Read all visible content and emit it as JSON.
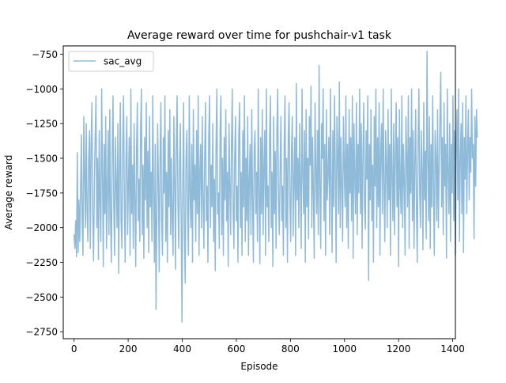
{
  "chart_data": {
    "type": "line",
    "title": "Average reward over time for pushchair-v1 task",
    "xlabel": "Episode",
    "ylabel": "Average reward",
    "xlim": [
      -40,
      1410
    ],
    "ylim": [
      -2800,
      -690
    ],
    "xticks": [
      0,
      200,
      400,
      600,
      800,
      1000,
      1200,
      1400
    ],
    "xtick_labels": [
      "0",
      "200",
      "400",
      "600",
      "800",
      "1000",
      "1200",
      "1400"
    ],
    "yticks": [
      -2750,
      -2500,
      -2250,
      -2000,
      -1750,
      -1500,
      -1250,
      -1000,
      -750
    ],
    "ytick_labels": [
      "−2750",
      "−2500",
      "−2250",
      "−2000",
      "−1750",
      "−1500",
      "−1250",
      "−1000",
      "−750"
    ],
    "grid": false,
    "legend_position": "top-left",
    "series": [
      {
        "name": "sac_avg",
        "color": "#8fbbd9",
        "x_start": 0,
        "x_step": 3,
        "values": [
          -2050,
          -2150,
          -1950,
          -2210,
          -1460,
          -2180,
          -1800,
          -2100,
          -1750,
          -1330,
          -1960,
          -2200,
          -1200,
          -1600,
          -2000,
          -1250,
          -1870,
          -2100,
          -1500,
          -1300,
          -2150,
          -1400,
          -1100,
          -1900,
          -2240,
          -1700,
          -1350,
          -1050,
          -2000,
          -1500,
          -2230,
          -1300,
          -1800,
          -2100,
          -1000,
          -1600,
          -2280,
          -1400,
          -1900,
          -1200,
          -2150,
          -1750,
          -1300,
          -2050,
          -1150,
          -1950,
          -2250,
          -1450,
          -1050,
          -1850,
          -2200,
          -1350,
          -1700,
          -2000,
          -1250,
          -2330,
          -1600,
          -1100,
          -1950,
          -2150,
          -1400,
          -1050,
          -1800,
          -2250,
          -1500,
          -1200,
          -2050,
          -1700,
          -1350,
          -2200,
          -1000,
          -1900,
          -1550,
          -2150,
          -1250,
          -1800,
          -2280,
          -1450,
          -1100,
          -1950,
          -1650,
          -2100,
          -1300,
          -1000,
          -2050,
          -1550,
          -2220,
          -1350,
          -1800,
          -1100,
          -2000,
          -1450,
          -2180,
          -1200,
          -1850,
          -1600,
          -2100,
          -1050,
          -1750,
          -2250,
          -1400,
          -2590,
          -1900,
          -1250,
          -1700,
          -2320,
          -1500,
          -1100,
          -1950,
          -2200,
          -1350,
          -1750,
          -1050,
          -2100,
          -1600,
          -2250,
          -1300,
          -1850,
          -1150,
          -2050,
          -1500,
          -1950,
          -2200,
          -1200,
          -1650,
          -2300,
          -1400,
          -1050,
          -1800,
          -2150,
          -1550,
          -1250,
          -1950,
          -2680,
          -1700,
          -1100,
          -2050,
          -2400,
          -1500,
          -1300,
          -1900,
          -2200,
          -1050,
          -1750,
          -2000,
          -1400,
          -2250,
          -1150,
          -1800,
          -1550,
          -2100,
          -1300,
          -1900,
          -1050,
          -2200,
          -1600,
          -1400,
          -2000,
          -1200,
          -1800,
          -2150,
          -1500,
          -1100,
          -1950,
          -1700,
          -2250,
          -1350,
          -1050,
          -2000,
          -1550,
          -1850,
          -1250,
          -2100,
          -1650,
          -2310,
          -1400,
          -1000,
          -1900,
          -1750,
          -2150,
          -1300,
          -1050,
          -2050,
          -1500,
          -2200,
          -1350,
          -1800,
          -1150,
          -1950,
          -1600,
          -2280,
          -1250,
          -1700,
          -2050,
          -1400,
          -1000,
          -1850,
          -2150,
          -1500,
          -1200,
          -1950,
          -1700,
          -2250,
          -1350,
          -1100,
          -2000,
          -1600,
          -2200,
          -1300,
          -1850,
          -1050,
          -2100,
          -1500,
          -1950,
          -1200,
          -2200,
          -1650,
          -1400,
          -2050,
          -1150,
          -1800,
          -2250,
          -1450,
          -1300,
          -1900,
          -1600,
          -2100,
          -1000,
          -1750,
          -2260,
          -1350,
          -1900,
          -1150,
          -2050,
          -1550,
          -1300,
          -2200,
          -1000,
          -1850,
          -1700,
          -2100,
          -1350,
          -1050,
          -2000,
          -1600,
          -2280,
          -1200,
          -1900,
          -1450,
          -2150,
          -1300,
          -1000,
          -1800,
          -2050,
          -1550,
          -1200,
          -1950,
          -1700,
          -2200,
          -1400,
          -1050,
          -2000,
          -1500,
          -2250,
          -1350,
          -1100,
          -1800,
          -2100,
          -1450,
          -1200,
          -2060,
          -1650,
          -1350,
          -2200,
          -960,
          -1800,
          -1500,
          -2000,
          -1250,
          -1700,
          -2150,
          -1000,
          -1600,
          -1900,
          -1300,
          -2250,
          -1150,
          -1850,
          -1500,
          -2080,
          -1200,
          -1550,
          -980,
          -2000,
          -1350,
          -1750,
          -2220,
          -1100,
          -1600,
          -1900,
          -1300,
          -2050,
          -830,
          -1700,
          -2150,
          -1250,
          -1500,
          -1000,
          -1950,
          -1400,
          -2200,
          -1150,
          -1800,
          -1600,
          -1350,
          -2050,
          -1000,
          -1700,
          -2180,
          -1300,
          -1850,
          -1050,
          -1600,
          -2250,
          -1200,
          -1450,
          -1900,
          -950,
          -2000,
          -1350,
          -1700,
          -2100,
          -1200,
          -1550,
          -1850,
          -1050,
          -2000,
          -1400,
          -2150,
          -1150,
          -1750,
          -1350,
          -1950,
          -1050,
          -2220,
          -1250,
          -1650,
          -1900,
          -1100,
          -2050,
          -1400,
          -1750,
          -1000,
          -1900,
          -1250,
          -2150,
          -1500,
          -1100,
          -1850,
          -2010,
          -1300,
          -1650,
          -1050,
          -2380,
          -1400,
          -1800,
          -1150,
          -1950,
          -1550,
          -2250,
          -1200,
          -1700,
          -1000,
          -2000,
          -1350,
          -1850,
          -1100,
          -2200,
          -1450,
          -1250,
          -1900,
          -1000,
          -1700,
          -2100,
          -1300,
          -1550,
          -2000,
          -1150,
          -1800,
          -1400,
          -2200,
          -1000,
          -1650,
          -1950,
          -1250,
          -2050,
          -1500,
          -1100,
          -1850,
          -1350,
          -2280,
          -1150,
          -1700,
          -1900,
          -1050,
          -2000,
          -1400,
          -1650,
          -2200,
          -1200,
          -1500,
          -1850,
          -1050,
          -2150,
          -1350,
          -1750,
          -1000,
          -1950,
          -1300,
          -2150,
          -1550,
          -1150,
          -1850,
          -2250,
          -1400,
          -1000,
          -1750,
          -2000,
          -1300,
          -1600,
          -2160,
          -1100,
          -1800,
          -1450,
          -2080,
          -730,
          -1500,
          -1950,
          -1200,
          -2150,
          -1400,
          -1850,
          -1050,
          -1700,
          -2200,
          -1300,
          -1500,
          -1950,
          -1150,
          -2000,
          -1550,
          -1200,
          -880,
          -1850,
          -1350,
          -2050,
          -1100,
          -1700,
          -1400,
          -2220,
          -1000,
          -1600,
          -1900,
          -1250,
          -2100,
          -1400,
          -1750,
          -1050,
          -1950,
          -1300,
          -2200,
          -1450,
          -1150,
          -1800,
          -1000,
          -2100,
          -1500,
          -1250,
          -1900,
          -1100,
          -2180,
          -1350,
          -1650,
          -1050,
          -1900,
          -1450,
          -1150,
          -1800,
          -1350,
          -1600,
          -1000,
          -1500,
          -1400,
          -2080,
          -1200,
          -1700,
          -1150,
          -1350
        ]
      }
    ]
  }
}
